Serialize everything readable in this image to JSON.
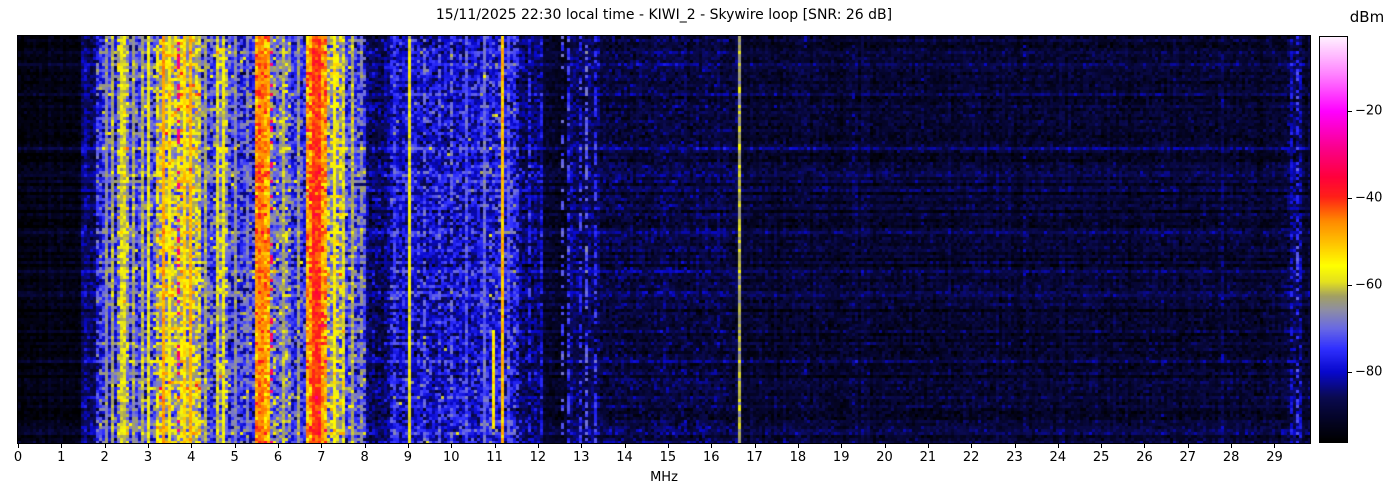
{
  "title": "15/11/2025 22:30 local time - KIWI_2 - Skywire loop [SNR: 26 dB]",
  "chart_data": {
    "type": "heatmap",
    "subtype": "radio-spectrogram-waterfall",
    "title": "15/11/2025 22:30 local time - KIWI_2 - Skywire loop [SNR: 26 dB]",
    "xlabel": "MHz",
    "x_range": [
      0,
      29.82
    ],
    "x_ticks": [
      0,
      1,
      2,
      3,
      4,
      5,
      6,
      7,
      8,
      9,
      10,
      11,
      12,
      13,
      14,
      15,
      16,
      17,
      18,
      19,
      20,
      21,
      22,
      23,
      24,
      25,
      26,
      27,
      28,
      29
    ],
    "grid": false,
    "legend_position": "none",
    "colorbar": {
      "label": "dBm",
      "top_value": -3,
      "bottom_value": -96,
      "ticks": [
        -20,
        -40,
        -60,
        -80
      ],
      "tick_labels": [
        "−20",
        "−40",
        "−60",
        "−80"
      ]
    },
    "colormap_stops": [
      [
        0.0,
        [
          0,
          0,
          0
        ]
      ],
      [
        0.055,
        [
          4,
          4,
          38
        ]
      ],
      [
        0.11,
        [
          10,
          10,
          82
        ]
      ],
      [
        0.172,
        [
          8,
          8,
          205
        ]
      ],
      [
        0.23,
        [
          48,
          48,
          255
        ]
      ],
      [
        0.28,
        [
          105,
          105,
          228
        ]
      ],
      [
        0.325,
        [
          142,
          142,
          165
        ]
      ],
      [
        0.36,
        [
          162,
          160,
          98
        ]
      ],
      [
        0.395,
        [
          228,
          225,
          30
        ]
      ],
      [
        0.435,
        [
          255,
          255,
          0
        ]
      ],
      [
        0.49,
        [
          255,
          196,
          0
        ]
      ],
      [
        0.545,
        [
          255,
          138,
          0
        ]
      ],
      [
        0.578,
        [
          255,
          80,
          10
        ]
      ],
      [
        0.605,
        [
          255,
          32,
          24
        ]
      ],
      [
        0.655,
        [
          255,
          0,
          60
        ]
      ],
      [
        0.725,
        [
          250,
          0,
          138
        ]
      ],
      [
        0.817,
        [
          255,
          0,
          255
        ]
      ],
      [
        0.91,
        [
          255,
          132,
          255
        ]
      ],
      [
        1.0,
        [
          255,
          240,
          255
        ]
      ]
    ],
    "bands_columns": [
      "f_start_MHz",
      "f_end_MHz",
      "mean_level_dBm",
      "sigma_dB"
    ],
    "bands": [
      [
        0.0,
        1.45,
        -93,
        1.5
      ],
      [
        1.45,
        1.8,
        -85,
        3
      ],
      [
        1.8,
        2.3,
        -77,
        6
      ],
      [
        2.3,
        2.55,
        -66,
        6
      ],
      [
        2.55,
        3.2,
        -73,
        6.5
      ],
      [
        3.2,
        4.2,
        -61,
        6.5
      ],
      [
        4.2,
        4.55,
        -73,
        6
      ],
      [
        4.55,
        4.85,
        -68,
        6
      ],
      [
        4.85,
        5.5,
        -76,
        6
      ],
      [
        5.5,
        5.8,
        -48,
        4
      ],
      [
        5.8,
        6.3,
        -70,
        6.5
      ],
      [
        6.3,
        6.65,
        -76,
        5
      ],
      [
        6.65,
        7.15,
        -48,
        5
      ],
      [
        7.15,
        7.55,
        -64,
        7
      ],
      [
        7.55,
        8.05,
        -74,
        6
      ],
      [
        8.05,
        8.6,
        -85,
        3.5
      ],
      [
        8.6,
        9.0,
        -80,
        4.5
      ],
      [
        9.0,
        10.65,
        -80,
        4.5
      ],
      [
        10.65,
        11.5,
        -78,
        5
      ],
      [
        11.5,
        12.1,
        -85,
        3.5
      ],
      [
        12.1,
        12.65,
        -91,
        2
      ],
      [
        12.65,
        13.45,
        -86,
        3
      ],
      [
        13.45,
        16.6,
        -88,
        2.8
      ],
      [
        16.6,
        29.3,
        -89.5,
        2.2
      ],
      [
        29.3,
        29.65,
        -87,
        3
      ],
      [
        29.65,
        29.85,
        -89,
        2.2
      ]
    ],
    "lines_columns": [
      "f_MHz",
      "level_dBm",
      "halfwidth_MHz",
      "duty",
      "row_start_frac",
      "row_end_frac"
    ],
    "lines": [
      [
        2.02,
        -66,
        0.025,
        1,
        0,
        1
      ],
      [
        2.2,
        -63,
        0.025,
        1,
        0,
        1
      ],
      [
        2.42,
        -60,
        0.04,
        1,
        0,
        1
      ],
      [
        2.68,
        -64,
        0.025,
        1,
        0,
        1
      ],
      [
        2.88,
        -62,
        0.025,
        1,
        0,
        1
      ],
      [
        3.02,
        -58,
        0.03,
        1,
        0,
        1
      ],
      [
        3.33,
        -48,
        0.035,
        1,
        0,
        1
      ],
      [
        3.5,
        -56,
        0.03,
        1,
        0,
        1
      ],
      [
        3.67,
        -30,
        0.018,
        0.3,
        0,
        1
      ],
      [
        3.85,
        -53,
        0.03,
        1,
        0,
        1
      ],
      [
        3.95,
        -49,
        0.03,
        1,
        0,
        1
      ],
      [
        4.33,
        -63,
        0.022,
        1,
        0,
        1
      ],
      [
        4.57,
        -60,
        0.022,
        1,
        0,
        1
      ],
      [
        4.72,
        -58,
        0.028,
        1,
        0,
        1
      ],
      [
        5.0,
        -66,
        0.022,
        1,
        0,
        1
      ],
      [
        5.3,
        -68,
        0.022,
        0.8,
        0,
        1
      ],
      [
        5.62,
        -46,
        0.06,
        1,
        0,
        1
      ],
      [
        5.87,
        -32,
        0.018,
        0.25,
        0,
        1
      ],
      [
        6.1,
        -62,
        0.022,
        1,
        0,
        1
      ],
      [
        6.45,
        -64,
        0.022,
        0.9,
        0,
        1
      ],
      [
        6.9,
        -41,
        0.1,
        1,
        0,
        1
      ],
      [
        7.05,
        -50,
        0.04,
        1,
        0,
        1
      ],
      [
        7.3,
        -56,
        0.04,
        1,
        0,
        1
      ],
      [
        7.5,
        -60,
        0.022,
        1,
        0,
        1
      ],
      [
        7.7,
        -62,
        0.022,
        1,
        0,
        1
      ],
      [
        7.9,
        -66,
        0.022,
        0.8,
        0,
        1
      ],
      [
        8.7,
        -74,
        0.022,
        0.7,
        0,
        1
      ],
      [
        9.07,
        -58,
        0.02,
        1,
        0,
        1
      ],
      [
        9.4,
        -70,
        0.02,
        0.5,
        0,
        1
      ],
      [
        9.75,
        -72,
        0.02,
        0.4,
        0,
        1
      ],
      [
        10.0,
        -70,
        0.02,
        0.5,
        0,
        1
      ],
      [
        10.35,
        -72,
        0.02,
        0.8,
        0,
        1
      ],
      [
        10.78,
        -70,
        0.022,
        1,
        0,
        1
      ],
      [
        10.95,
        -53,
        0.02,
        1,
        0.72,
        0.97
      ],
      [
        11.16,
        -50,
        0.022,
        1,
        0,
        1
      ],
      [
        11.35,
        -72,
        0.02,
        0.8,
        0,
        1
      ],
      [
        11.56,
        -75,
        0.02,
        0.6,
        0,
        1
      ],
      [
        11.8,
        -76,
        0.02,
        0.5,
        0,
        1
      ],
      [
        12.1,
        -78,
        0.02,
        0.4,
        0,
        1
      ],
      [
        12.56,
        -72,
        0.02,
        0.35,
        0,
        1
      ],
      [
        12.72,
        -74,
        0.02,
        0.5,
        0,
        1
      ],
      [
        12.95,
        -75,
        0.02,
        0.45,
        0,
        1
      ],
      [
        13.15,
        -71,
        0.02,
        0.5,
        0,
        1
      ],
      [
        13.3,
        -75,
        0.02,
        0.6,
        0,
        1
      ],
      [
        16.62,
        -62,
        0.02,
        1,
        0,
        1
      ],
      [
        18.2,
        -85,
        0.02,
        0.3,
        0,
        1
      ],
      [
        19.3,
        -84,
        0.02,
        0.3,
        0,
        1
      ],
      [
        20.9,
        -85,
        0.02,
        0.3,
        0,
        1
      ],
      [
        23.2,
        -85,
        0.02,
        0.25,
        0,
        1
      ],
      [
        26.4,
        -85,
        0.02,
        0.25,
        0,
        1
      ],
      [
        27.8,
        -84,
        0.02,
        0.3,
        0,
        1
      ],
      [
        29.4,
        -79,
        0.02,
        0.5,
        0,
        1
      ],
      [
        29.5,
        -74,
        0.028,
        0.55,
        0,
        1
      ],
      [
        29.6,
        -80,
        0.02,
        0.45,
        0,
        1
      ]
    ],
    "row_streaks": [
      [
        0.065,
        2.5
      ],
      [
        0.138,
        3
      ],
      [
        0.174,
        2.5
      ],
      [
        0.273,
        4.5
      ],
      [
        0.359,
        3
      ],
      [
        0.48,
        2
      ],
      [
        0.63,
        2.5
      ],
      [
        0.727,
        4
      ],
      [
        0.8,
        2.5
      ],
      [
        0.89,
        3
      ],
      [
        0.975,
        3
      ]
    ],
    "noise_seed": 20251115
  }
}
